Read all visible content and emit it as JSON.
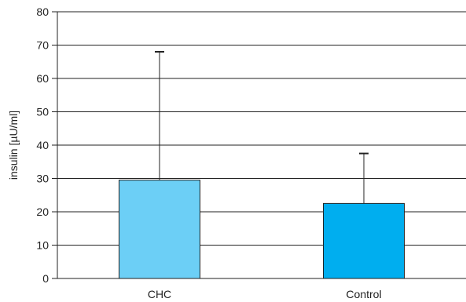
{
  "chart_data": {
    "type": "bar",
    "categories": [
      "CHC",
      "Control"
    ],
    "values": [
      29.5,
      22.5
    ],
    "error_upper": [
      68,
      37.5
    ],
    "ylabel": "insulin [µU/ml]",
    "xlabel": "",
    "ylim": [
      0,
      80
    ],
    "yticks": [
      0,
      10,
      20,
      30,
      40,
      50,
      60,
      70,
      80
    ],
    "grid": true,
    "colors": [
      "#6ccff6",
      "#00aeef"
    ]
  }
}
